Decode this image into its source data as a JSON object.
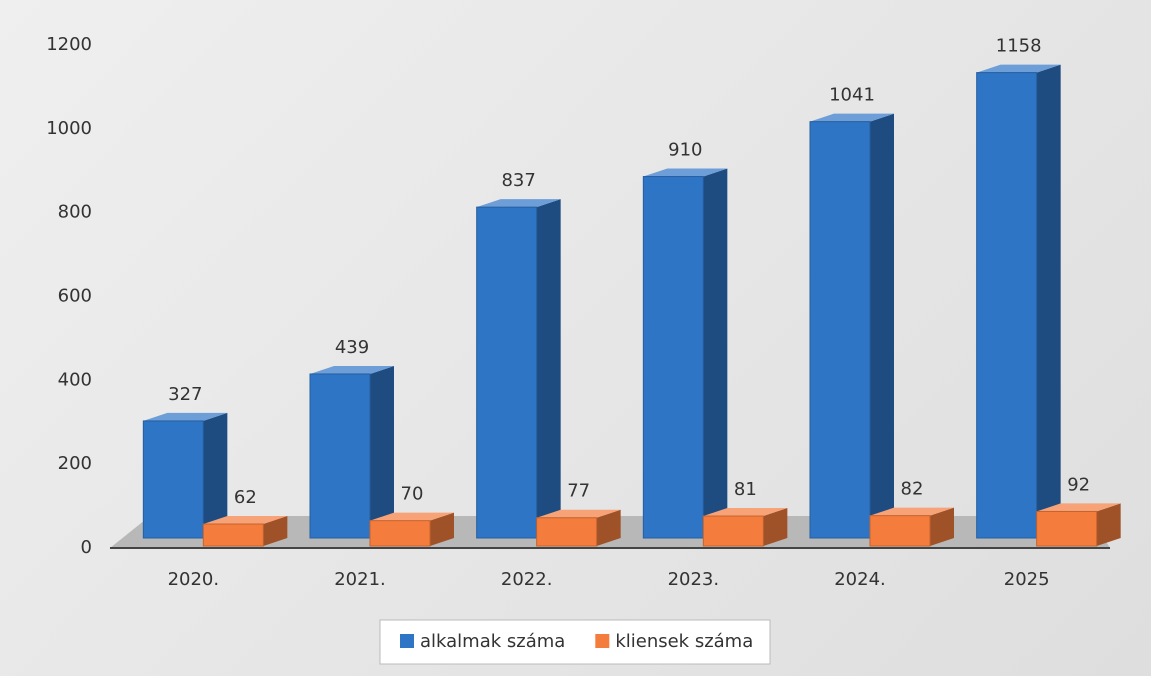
{
  "chart_data": {
    "type": "bar3d",
    "categories": [
      "2020.",
      "2021.",
      "2022.",
      "2023.",
      "2024.",
      "2025"
    ],
    "series": [
      {
        "name": "alkalmak száma",
        "color": "#2e75c6",
        "values": [
          327,
          439,
          837,
          910,
          1041,
          1158
        ]
      },
      {
        "name": "kliensek száma",
        "color": "#f47c3c",
        "values": [
          62,
          70,
          77,
          81,
          82,
          92
        ]
      }
    ],
    "ylim": [
      0,
      1200
    ],
    "yticks": [
      0,
      200,
      400,
      600,
      800,
      1000,
      1200
    ],
    "legend": "bottom"
  }
}
